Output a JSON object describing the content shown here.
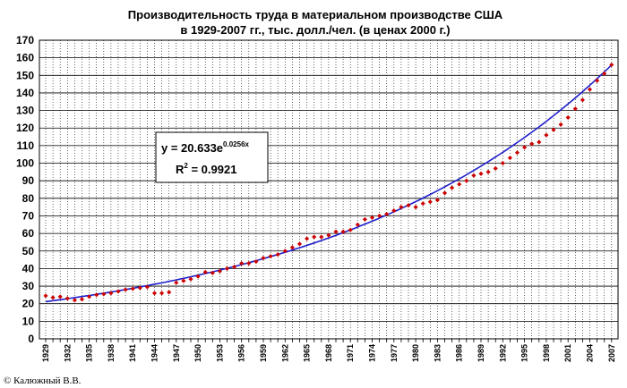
{
  "chart_data": {
    "type": "scatter",
    "title_lines": [
      "Производительность труда в материальном производстве США",
      "в 1929-2007 гг., тыс. долл./чел. (в ценах 2000 г.)"
    ],
    "xlabel": "",
    "ylabel": "",
    "xlim": [
      1929,
      2007
    ],
    "ylim": [
      0,
      170
    ],
    "y_ticks": [
      0,
      10,
      20,
      30,
      40,
      50,
      60,
      70,
      80,
      90,
      100,
      110,
      120,
      130,
      140,
      150,
      160,
      170
    ],
    "x_tick_labels": [
      1929,
      1932,
      1935,
      1938,
      1941,
      1944,
      1947,
      1950,
      1953,
      1956,
      1959,
      1962,
      1965,
      1968,
      1971,
      1974,
      1977,
      1980,
      1983,
      1986,
      1989,
      1992,
      1995,
      1998,
      2001,
      2004,
      2007
    ],
    "grid": true,
    "series": [
      {
        "kind": "points",
        "color": "#cc0000",
        "points": [
          [
            1929,
            24.5
          ],
          [
            1930,
            23.5
          ],
          [
            1931,
            24
          ],
          [
            1932,
            23
          ],
          [
            1933,
            22
          ],
          [
            1934,
            22.5
          ],
          [
            1935,
            24
          ],
          [
            1936,
            25
          ],
          [
            1937,
            25.5
          ],
          [
            1938,
            26
          ],
          [
            1939,
            27
          ],
          [
            1940,
            28
          ],
          [
            1941,
            28.5
          ],
          [
            1942,
            29
          ],
          [
            1943,
            29.5
          ],
          [
            1944,
            26
          ],
          [
            1945,
            26
          ],
          [
            1946,
            26.5
          ],
          [
            1947,
            32
          ],
          [
            1948,
            33
          ],
          [
            1949,
            34
          ],
          [
            1950,
            35.5
          ],
          [
            1951,
            38
          ],
          [
            1952,
            37.5
          ],
          [
            1953,
            38.5
          ],
          [
            1954,
            40
          ],
          [
            1955,
            41
          ],
          [
            1956,
            43
          ],
          [
            1957,
            43
          ],
          [
            1958,
            44
          ],
          [
            1959,
            46
          ],
          [
            1960,
            47
          ],
          [
            1961,
            48
          ],
          [
            1962,
            50
          ],
          [
            1963,
            52
          ],
          [
            1964,
            54
          ],
          [
            1965,
            57
          ],
          [
            1966,
            58
          ],
          [
            1967,
            58
          ],
          [
            1968,
            59
          ],
          [
            1969,
            61
          ],
          [
            1970,
            61
          ],
          [
            1971,
            62
          ],
          [
            1972,
            65
          ],
          [
            1973,
            68
          ],
          [
            1974,
            69
          ],
          [
            1975,
            70
          ],
          [
            1976,
            71
          ],
          [
            1977,
            73
          ],
          [
            1978,
            75
          ],
          [
            1979,
            76
          ],
          [
            1980,
            75
          ],
          [
            1981,
            77
          ],
          [
            1982,
            78
          ],
          [
            1983,
            79
          ],
          [
            1984,
            83
          ],
          [
            1985,
            86
          ],
          [
            1986,
            88
          ],
          [
            1987,
            90
          ],
          [
            1988,
            93
          ],
          [
            1989,
            94
          ],
          [
            1990,
            95
          ],
          [
            1991,
            97
          ],
          [
            1992,
            100
          ],
          [
            1993,
            103
          ],
          [
            1994,
            106
          ],
          [
            1995,
            109
          ],
          [
            1996,
            111
          ],
          [
            1997,
            112
          ],
          [
            1998,
            116
          ],
          [
            1999,
            119
          ],
          [
            2000,
            122
          ],
          [
            2001,
            126
          ],
          [
            2002,
            131
          ],
          [
            2003,
            136
          ],
          [
            2004,
            142
          ],
          [
            2005,
            147
          ],
          [
            2006,
            151
          ],
          [
            2007,
            156
          ]
        ]
      },
      {
        "kind": "trendline",
        "color": "#1f1fcc",
        "equation": {
          "a": 20.633,
          "b": 0.0256,
          "x_origin_year": 1929
        }
      }
    ],
    "annotation": {
      "equation_prefix": "y = 20.633e",
      "equation_exponent": "0.0256x",
      "r2_prefix": "R",
      "r2_superscript": "2",
      "r2_value": " = 0.9921"
    }
  },
  "credit": "© Калюжный В.В."
}
